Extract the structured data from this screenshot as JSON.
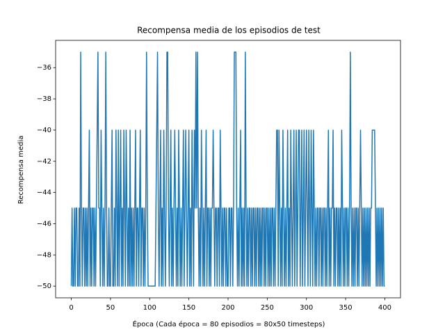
{
  "chart_data": {
    "type": "line",
    "title": "Recompensa media de los episodios de test",
    "x_label": "Época (Cada época = 80 episodios = 80x50 timesteps)",
    "y_label": "Recompensa media",
    "color": "#1f77b4",
    "xlim": [
      -20,
      420
    ],
    "ylim": [
      -50.75,
      -34.25
    ],
    "xticks": [
      0,
      50,
      100,
      150,
      200,
      250,
      300,
      350,
      400
    ],
    "yticks": [
      {
        "value": -50,
        "label": "−50"
      },
      {
        "value": -48,
        "label": "−48"
      },
      {
        "value": -46,
        "label": "−46"
      },
      {
        "value": -44,
        "label": "−44"
      },
      {
        "value": -42,
        "label": "−42"
      },
      {
        "value": -40,
        "label": "−40"
      },
      {
        "value": -38,
        "label": "−38"
      },
      {
        "value": -36,
        "label": "−36"
      }
    ],
    "x": [
      0,
      1,
      2,
      3,
      4,
      5,
      6,
      7,
      8,
      9,
      10,
      11,
      12,
      13,
      14,
      15,
      16,
      17,
      18,
      19,
      20,
      21,
      22,
      23,
      24,
      25,
      26,
      27,
      28,
      29,
      30,
      31,
      32,
      33,
      34,
      35,
      36,
      37,
      38,
      39,
      40,
      41,
      42,
      43,
      44,
      45,
      46,
      47,
      48,
      49,
      50,
      51,
      52,
      53,
      54,
      55,
      56,
      57,
      58,
      59,
      60,
      61,
      62,
      63,
      64,
      65,
      66,
      67,
      68,
      69,
      70,
      71,
      72,
      73,
      74,
      75,
      76,
      77,
      78,
      79,
      80,
      81,
      82,
      83,
      84,
      85,
      86,
      87,
      88,
      89,
      90,
      91,
      92,
      93,
      94,
      95,
      96,
      97,
      98,
      99,
      100,
      101,
      102,
      103,
      104,
      105,
      106,
      107,
      108,
      109,
      110,
      111,
      112,
      113,
      114,
      115,
      116,
      117,
      118,
      119,
      120,
      121,
      122,
      123,
      124,
      125,
      126,
      127,
      128,
      129,
      130,
      131,
      132,
      133,
      134,
      135,
      136,
      137,
      138,
      139,
      140,
      141,
      142,
      143,
      144,
      145,
      146,
      147,
      148,
      149,
      150,
      151,
      152,
      153,
      154,
      155,
      156,
      157,
      158,
      159,
      160,
      161,
      162,
      163,
      164,
      165,
      166,
      167,
      168,
      169,
      170,
      171,
      172,
      173,
      174,
      175,
      176,
      177,
      178,
      179,
      180,
      181,
      182,
      183,
      184,
      185,
      186,
      187,
      188,
      189,
      190,
      191,
      192,
      193,
      194,
      195,
      196,
      197,
      198,
      199,
      200,
      201,
      202,
      203,
      204,
      205,
      206,
      207,
      208,
      209,
      210,
      211,
      212,
      213,
      214,
      215,
      216,
      217,
      218,
      219,
      220,
      221,
      222,
      223,
      224,
      225,
      226,
      227,
      228,
      229,
      230,
      231,
      232,
      233,
      234,
      235,
      236,
      237,
      238,
      239,
      240,
      241,
      242,
      243,
      244,
      245,
      246,
      247,
      248,
      249,
      250,
      251,
      252,
      253,
      254,
      255,
      256,
      257,
      258,
      259,
      260,
      261,
      262,
      263,
      264,
      265,
      266,
      267,
      268,
      269,
      270,
      271,
      272,
      273,
      274,
      275,
      276,
      277,
      278,
      279,
      280,
      281,
      282,
      283,
      284,
      285,
      286,
      287,
      288,
      289,
      290,
      291,
      292,
      293,
      294,
      295,
      296,
      297,
      298,
      299,
      300,
      301,
      302,
      303,
      304,
      305,
      306,
      307,
      308,
      309,
      310,
      311,
      312,
      313,
      314,
      315,
      316,
      317,
      318,
      319,
      320,
      321,
      322,
      323,
      324,
      325,
      326,
      327,
      328,
      329,
      330,
      331,
      332,
      333,
      334,
      335,
      336,
      337,
      338,
      339,
      340,
      341,
      342,
      343,
      344,
      345,
      346,
      347,
      348,
      349,
      350,
      351,
      352,
      353,
      354,
      355,
      356,
      357,
      358,
      359,
      360,
      361,
      362,
      363,
      364,
      365,
      366,
      367,
      368,
      369,
      370,
      371,
      372,
      373,
      374,
      375,
      376,
      377,
      378,
      379,
      380,
      381,
      382,
      383,
      384,
      385,
      386,
      387,
      388,
      389,
      390,
      391,
      392,
      393,
      394,
      395,
      396,
      397,
      398,
      399,
      400
    ],
    "values": [
      -50,
      -45,
      -50,
      -50,
      -45,
      -50,
      -45,
      -45,
      -50,
      -50,
      -45,
      -50,
      -35,
      -45,
      -50,
      -45,
      -45,
      -50,
      -45,
      -50,
      -45,
      -50,
      -45,
      -40,
      -50,
      -45,
      -50,
      -45,
      -45,
      -50,
      -45,
      -50,
      -45,
      -40,
      -35,
      -45,
      -45,
      -50,
      -40,
      -45,
      -50,
      -45,
      -50,
      -45,
      -35,
      -45,
      -50,
      -50,
      -45,
      -50,
      -50,
      -45,
      -40,
      -50,
      -50,
      -45,
      -50,
      -40,
      -45,
      -50,
      -40,
      -50,
      -45,
      -40,
      -50,
      -45,
      -50,
      -40,
      -45,
      -50,
      -40,
      -45,
      -50,
      -45,
      -50,
      -40,
      -50,
      -45,
      -50,
      -45,
      -50,
      -45,
      -40,
      -50,
      -45,
      -45,
      -50,
      -45,
      -40,
      -50,
      -45,
      -45,
      -50,
      -45,
      -50,
      -45,
      -35,
      -45,
      -50,
      -50,
      -50,
      -50,
      -50,
      -50,
      -50,
      -50,
      -50,
      -50,
      -45,
      -40,
      -35,
      -45,
      -50,
      -45,
      -40,
      -50,
      -45,
      -50,
      -40,
      -45,
      -50,
      -45,
      -35,
      -35,
      -45,
      -50,
      -45,
      -40,
      -50,
      -45,
      -50,
      -45,
      -40,
      -45,
      -50,
      -45,
      -50,
      -40,
      -45,
      -50,
      -45,
      -50,
      -45,
      -40,
      -50,
      -45,
      -40,
      -45,
      -50,
      -45,
      -40,
      -50,
      -45,
      -50,
      -40,
      -45,
      -50,
      -40,
      -45,
      -35,
      -45,
      -35,
      -45,
      -50,
      -45,
      -50,
      -40,
      -45,
      -50,
      -45,
      -50,
      -45,
      -40,
      -50,
      -45,
      -45,
      -50,
      -45,
      -50,
      -45,
      -45,
      -40,
      -45,
      -50,
      -45,
      -45,
      -50,
      -45,
      -45,
      -50,
      -40,
      -45,
      -50,
      -45,
      -50,
      -45,
      -45,
      -50,
      -45,
      -50,
      -50,
      -45,
      -45,
      -50,
      -45,
      -45,
      -50,
      -45,
      -35,
      -35,
      -35,
      -45,
      -50,
      -45,
      -50,
      -45,
      -40,
      -50,
      -45,
      -50,
      -45,
      -50,
      -35,
      -45,
      -50,
      -45,
      -50,
      -45,
      -45,
      -50,
      -45,
      -50,
      -45,
      -45,
      -50,
      -45,
      -50,
      -45,
      -45,
      -50,
      -45,
      -50,
      -45,
      -50,
      -45,
      -45,
      -50,
      -45,
      -50,
      -45,
      -45,
      -50,
      -45,
      -50,
      -45,
      -50,
      -45,
      -45,
      -50,
      -45,
      -50,
      -45,
      -40,
      -40,
      -50,
      -40,
      -45,
      -50,
      -45,
      -50,
      -40,
      -45,
      -50,
      -45,
      -50,
      -45,
      -40,
      -50,
      -45,
      -50,
      -40,
      -45,
      -50,
      -45,
      -40,
      -50,
      -45,
      -40,
      -50,
      -45,
      -40,
      -40,
      -50,
      -45,
      -40,
      -50,
      -45,
      -40,
      -50,
      -45,
      -40,
      -45,
      -50,
      -40,
      -45,
      -50,
      -40,
      -45,
      -50,
      -40,
      -45,
      -50,
      -45,
      -50,
      -45,
      -45,
      -50,
      -45,
      -45,
      -50,
      -45,
      -50,
      -45,
      -45,
      -50,
      -45,
      -50,
      -45,
      -40,
      -50,
      -45,
      -50,
      -45,
      -45,
      -40,
      -50,
      -45,
      -50,
      -45,
      -45,
      -50,
      -45,
      -50,
      -45,
      -50,
      -40,
      -45,
      -50,
      -45,
      -50,
      -45,
      -45,
      -50,
      -45,
      -50,
      -45,
      -35,
      -45,
      -50,
      -45,
      -50,
      -45,
      -50,
      -45,
      -45,
      -50,
      -45,
      -50,
      -45,
      -40,
      -45,
      -50,
      -45,
      -50,
      -45,
      -50,
      -45,
      -50,
      -45,
      -50,
      -45,
      -50,
      -45,
      -45,
      -40,
      -40,
      -40,
      -40,
      -45,
      -50,
      -45,
      -50,
      -45,
      -50,
      -45,
      -50,
      -45,
      -50,
      -45,
      -50,
      -50
    ]
  }
}
